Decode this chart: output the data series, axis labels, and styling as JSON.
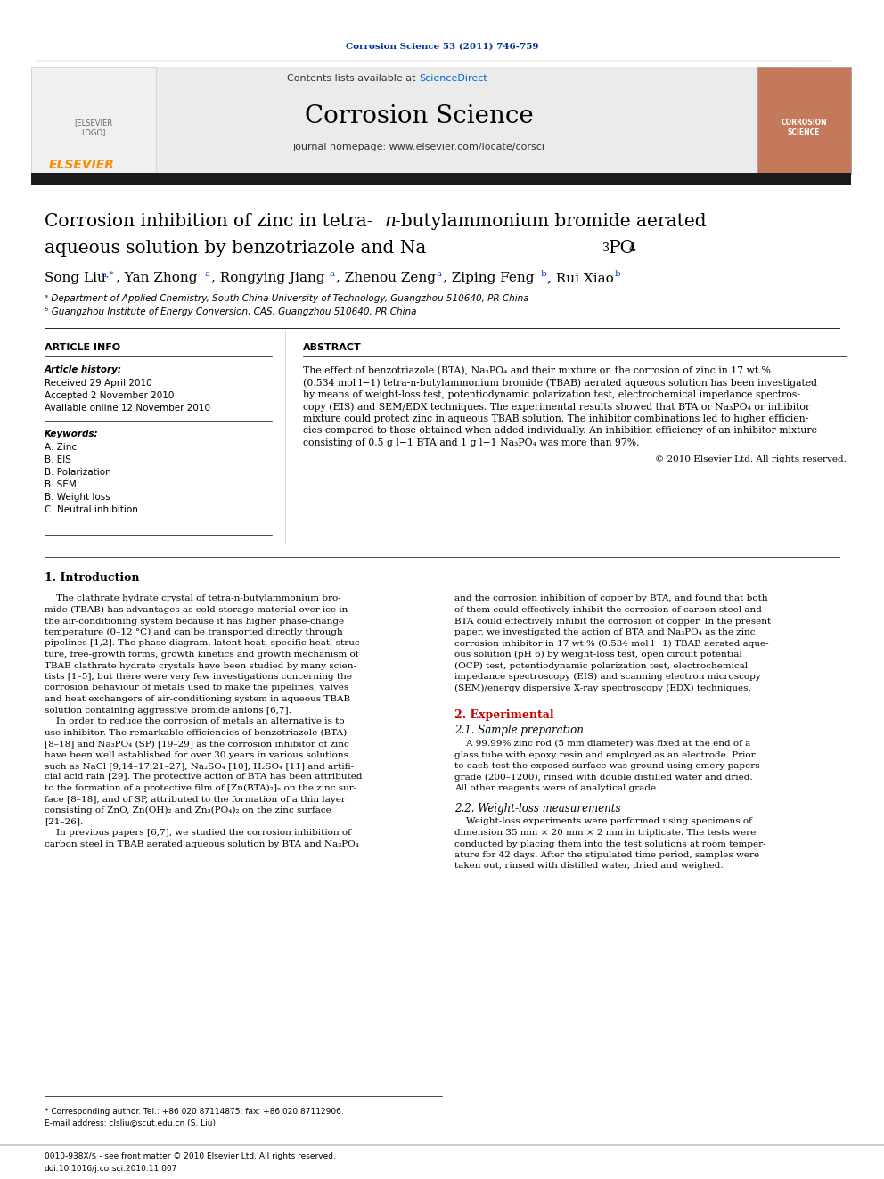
{
  "journal_ref": "Corrosion Science 53 (2011) 746-759",
  "journal_ref_color": "#003399",
  "journal_name": "Corrosion Science",
  "contents_text": "Contents lists available at ",
  "sciencedirect_text": "ScienceDirect",
  "sciencedirect_color": "#0066cc",
  "homepage_text": "journal homepage: www.elsevier.com/locate/corsci",
  "affil1": "ᵃ Department of Applied Chemistry, South China University of Technology, Guangzhou 510640, PR China",
  "affil2": "ᵇ Guangzhou Institute of Energy Conversion, CAS, Guangzhou 510640, PR China",
  "article_info_header": "ARTICLE INFO",
  "abstract_header": "ABSTRACT",
  "article_history_label": "Article history:",
  "received": "Received 29 April 2010",
  "accepted": "Accepted 2 November 2010",
  "available": "Available online 12 November 2010",
  "keywords_label": "Keywords:",
  "keywords": [
    "A. Zinc",
    "B. EIS",
    "B. Polarization",
    "B. SEM",
    "B. Weight loss",
    "C. Neutral inhibition"
  ],
  "abstract_text": "The effect of benzotriazole (BTA), Na₃PO₄ and their mixture on the corrosion of zinc in 17 wt.%\n(0.534 mol l−1) tetra-n-butylammonium bromide (TBAB) aerated aqueous solution has been investigated\nby means of weight-loss test, potentiodynamic polarization test, electrochemical impedance spectros-\ncopy (EIS) and SEM/EDX techniques. The experimental results showed that BTA or Na₃PO₄ or inhibitor\nmixture could protect zinc in aqueous TBAB solution. The inhibitor combinations led to higher efficien-\ncies compared to those obtained when added individually. An inhibition efficiency of an inhibitor mixture\nconsisting of 0.5 g l−1 BTA and 1 g l−1 Na₃PO₄ was more than 97%.",
  "copyright": "© 2010 Elsevier Ltd. All rights reserved.",
  "section1_title": "1. Introduction",
  "section1_left": "    The clathrate hydrate crystal of tetra-n-butylammonium bro-\nmide (TBAB) has advantages as cold-storage material over ice in\nthe air-conditioning system because it has higher phase-change\ntemperature (0–12 °C) and can be transported directly through\npipelines [1,2]. The phase diagram, latent heat, specific heat, struc-\nture, free-growth forms, growth kinetics and growth mechanism of\nTBAB clathrate hydrate crystals have been studied by many scien-\ntists [1–5], but there were very few investigations concerning the\ncorrosion behaviour of metals used to make the pipelines, valves\nand heat exchangers of air-conditioning system in aqueous TBAB\nsolution containing aggressive bromide anions [6,7].\n    In order to reduce the corrosion of metals an alternative is to\nuse inhibitor. The remarkable efficiencies of benzotriazole (BTA)\n[8–18] and Na₃PO₄ (SP) [19–29] as the corrosion inhibitor of zinc\nhave been well established for over 30 years in various solutions\nsuch as NaCl [9,14–17,21–27], Na₂SO₄ [10], H₂SO₄ [11] and artifi-\ncial acid rain [29]. The protective action of BTA has been attributed\nto the formation of a protective film of [Zn(BTA)₂]ₙ on the zinc sur-\nface [8–18], and of SP, attributed to the formation of a thin layer\nconsisting of ZnO, Zn(OH)₂ and Zn₃(PO₄)₂ on the zinc surface\n[21–26].\n    In previous papers [6,7], we studied the corrosion inhibition of\ncarbon steel in TBAB aerated aqueous solution by BTA and Na₃PO₄",
  "section1_right": "and the corrosion inhibition of copper by BTA, and found that both\nof them could effectively inhibit the corrosion of carbon steel and\nBTA could effectively inhibit the corrosion of copper. In the present\npaper, we investigated the action of BTA and Na₃PO₄ as the zinc\ncorrosion inhibitor in 17 wt.% (0.534 mol l−1) TBAB aerated aque-\nous solution (pH 6) by weight-loss test, open circuit potential\n(OCP) test, potentiodynamic polarization test, electrochemical\nimpedance spectroscopy (EIS) and scanning electron microscopy\n(SEM)/energy dispersive X-ray spectroscopy (EDX) techniques.",
  "section2_title": "2. Experimental",
  "section2_title_color": "#cc0000",
  "section21_title": "2.1. Sample preparation",
  "section21_text": "    A 99.99% zinc rod (5 mm diameter) was fixed at the end of a\nglass tube with epoxy resin and employed as an electrode. Prior\nto each test the exposed surface was ground using emery papers\ngrade (200–1200), rinsed with double distilled water and dried.\nAll other reagents were of analytical grade.",
  "section22_title": "2.2. Weight-loss measurements",
  "section22_text": "    Weight-loss experiments were performed using specimens of\ndimension 35 mm × 20 mm × 2 mm in triplicate. The tests were\nconducted by placing them into the test solutions at room temper-\nature for 42 days. After the stipulated time period, samples were\ntaken out, rinsed with distilled water, dried and weighed.",
  "footnote1": "* Corresponding author. Tel.: +86 020 87114875; fax: +86 020 87112906.",
  "footnote2": "E-mail address: clsliu@scut.edu.cn (S. Liu).",
  "footer1": "0010-938X/$ - see front matter © 2010 Elsevier Ltd. All rights reserved.",
  "footer2": "doi:10.1016/j.corsci.2010.11.007",
  "bg_color": "#ffffff",
  "black_bar_color": "#1a1a1a"
}
